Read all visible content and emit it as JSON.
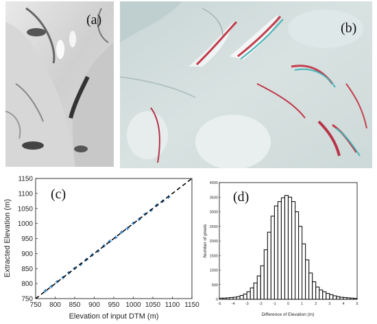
{
  "panels": {
    "a": {
      "tag": "(a)"
    },
    "b": {
      "tag": "(b)"
    },
    "c": {
      "tag": "(c)"
    },
    "d": {
      "tag": "(d)"
    }
  },
  "chart_data": [
    {
      "type": "scatter",
      "panel": "c",
      "title": "",
      "xlabel": "Elevation of input DTM (m)",
      "ylabel": "Extracted Elevation  (m)",
      "xlim": [
        750,
        1150
      ],
      "ylim": [
        750,
        1150
      ],
      "xticks": [
        750,
        800,
        850,
        900,
        950,
        1000,
        1050,
        1100,
        1150
      ],
      "yticks": [
        750,
        800,
        850,
        900,
        950,
        1000,
        1050,
        1100,
        1150
      ],
      "reference_line": "y = x",
      "series": [
        {
          "color": "#2b7bc4",
          "x": [
            775,
            790,
            805,
            820,
            835,
            850,
            865,
            880,
            895,
            910,
            925,
            940,
            955,
            970,
            985,
            1000,
            1015,
            1030,
            1045,
            1060,
            1075,
            1090
          ],
          "y": [
            776,
            790,
            806,
            820,
            836,
            851,
            864,
            880,
            896,
            909,
            926,
            941,
            954,
            971,
            984,
            1001,
            1014,
            1031,
            1044,
            1061,
            1074,
            1088
          ]
        }
      ],
      "grid": false
    },
    {
      "type": "bar",
      "panel": "d",
      "title": "",
      "xlabel": "Difference of Elevation (m)",
      "ylabel": "Number of pixels",
      "xlim": [
        -5,
        5
      ],
      "ylim": [
        0,
        4000
      ],
      "xticks": [
        -5,
        -4,
        -3,
        -2,
        -1,
        0,
        1,
        2,
        3,
        4,
        5
      ],
      "yticks": [
        0,
        500,
        1000,
        1500,
        2000,
        2500,
        3000,
        3500,
        4000
      ],
      "bin_width": 0.25,
      "bin_centers": [
        -4.875,
        -4.625,
        -4.375,
        -4.125,
        -3.875,
        -3.625,
        -3.375,
        -3.125,
        -2.875,
        -2.625,
        -2.375,
        -2.125,
        -1.875,
        -1.625,
        -1.375,
        -1.125,
        -0.875,
        -0.625,
        -0.375,
        -0.125,
        0.125,
        0.375,
        0.625,
        0.875,
        1.125,
        1.375,
        1.625,
        1.875,
        2.125,
        2.375,
        2.625,
        2.875,
        3.125,
        3.375,
        3.625,
        3.875,
        4.125,
        4.375,
        4.625,
        4.875
      ],
      "values": [
        40,
        40,
        50,
        60,
        70,
        90,
        130,
        180,
        260,
        390,
        560,
        800,
        1150,
        1700,
        2300,
        2850,
        3200,
        3350,
        3480,
        3560,
        3500,
        3350,
        3000,
        2500,
        1900,
        1350,
        900,
        600,
        420,
        320,
        260,
        200,
        160,
        120,
        90,
        70,
        60,
        50,
        40,
        30
      ],
      "grid": false
    }
  ]
}
